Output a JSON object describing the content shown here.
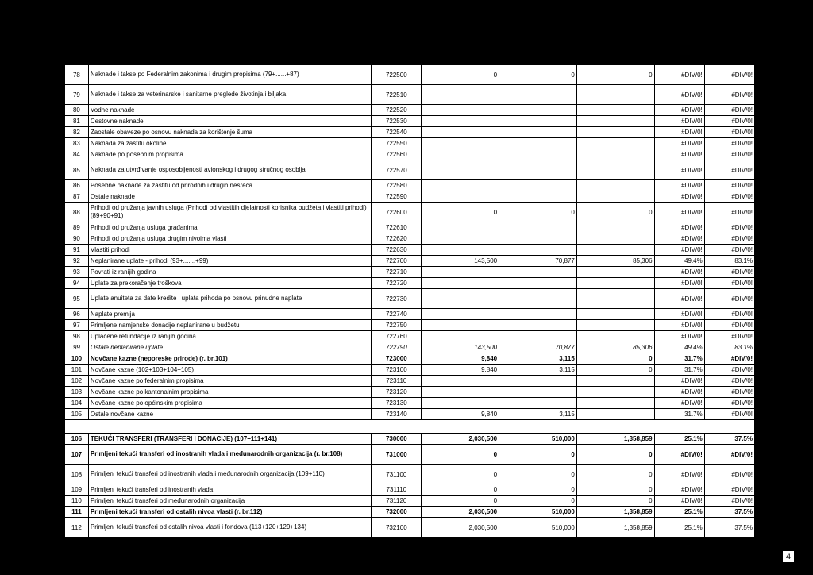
{
  "page_number": "4",
  "columns": [
    "rn",
    "desc",
    "code",
    "v1",
    "v2",
    "v3",
    "p1",
    "p2"
  ],
  "rows": [
    {
      "rn": "78",
      "desc": "Naknade i takse po Federalnim zakonima i drugim propisima (79+......+87)",
      "code": "722500",
      "v1": "0",
      "v2": "0",
      "v3": "0",
      "p1": "#DIV/0!",
      "p2": "#DIV/0!",
      "tall": true
    },
    {
      "rn": "79",
      "desc": "Naknade i takse za veterinarske i sanitarne preglede životinja i biljaka",
      "code": "722510",
      "v1": "",
      "v2": "",
      "v3": "",
      "p1": "#DIV/0!",
      "p2": "#DIV/0!",
      "tall": true
    },
    {
      "rn": "80",
      "desc": "Vodne naknade",
      "code": "722520",
      "v1": "",
      "v2": "",
      "v3": "",
      "p1": "#DIV/0!",
      "p2": "#DIV/0!"
    },
    {
      "rn": "81",
      "desc": "Cestovne naknade",
      "code": "722530",
      "v1": "",
      "v2": "",
      "v3": "",
      "p1": "#DIV/0!",
      "p2": "#DIV/0!"
    },
    {
      "rn": "82",
      "desc": "Zaostale obaveze po osnovu naknada za korištenje šuma",
      "code": "722540",
      "v1": "",
      "v2": "",
      "v3": "",
      "p1": "#DIV/0!",
      "p2": "#DIV/0!"
    },
    {
      "rn": "83",
      "desc": "Naknada za zaštitu okoline",
      "code": "722550",
      "v1": "",
      "v2": "",
      "v3": "",
      "p1": "#DIV/0!",
      "p2": "#DIV/0!"
    },
    {
      "rn": "84",
      "desc": "Naknade po posebnim propisima",
      "code": "722560",
      "v1": "",
      "v2": "",
      "v3": "",
      "p1": "#DIV/0!",
      "p2": "#DIV/0!"
    },
    {
      "rn": "85",
      "desc": "Naknada za utvrđivanje osposobljenosti avionskog i drugog stručnog osoblja",
      "code": "722570",
      "v1": "",
      "v2": "",
      "v3": "",
      "p1": "#DIV/0!",
      "p2": "#DIV/0!",
      "tall": true
    },
    {
      "rn": "86",
      "desc": "Posebne naknade za zaštitu od prirodnih i drugih nesreća",
      "code": "722580",
      "v1": "",
      "v2": "",
      "v3": "",
      "p1": "#DIV/0!",
      "p2": "#DIV/0!"
    },
    {
      "rn": "87",
      "desc": "Ostale naknade",
      "code": "722590",
      "v1": "",
      "v2": "",
      "v3": "",
      "p1": "#DIV/0!",
      "p2": "#DIV/0!"
    },
    {
      "rn": "88",
      "desc": "Prihodi od pružanja javnih usluga (Prihodi od vlastitih djelatnosti korisnika budžeta i vlastiti prihodi) (89+90+91)",
      "code": "722600",
      "v1": "0",
      "v2": "0",
      "v3": "0",
      "p1": "#DIV/0!",
      "p2": "#DIV/0!",
      "tall": true
    },
    {
      "rn": "89",
      "desc": "Prihodi od pružanja usluga građanima",
      "code": "722610",
      "v1": "",
      "v2": "",
      "v3": "",
      "p1": "#DIV/0!",
      "p2": "#DIV/0!"
    },
    {
      "rn": "90",
      "desc": "Prihodi od pružanja usluga drugim nivoima vlasti",
      "code": "722620",
      "v1": "",
      "v2": "",
      "v3": "",
      "p1": "#DIV/0!",
      "p2": "#DIV/0!"
    },
    {
      "rn": "91",
      "desc": "Vlastiti prihodi",
      "code": "722630",
      "v1": "",
      "v2": "",
      "v3": "",
      "p1": "#DIV/0!",
      "p2": "#DIV/0!"
    },
    {
      "rn": "92",
      "desc": "Neplanirane uplate - prihodi (93+.......+99)",
      "code": "722700",
      "v1": "143,500",
      "v2": "70,877",
      "v3": "85,306",
      "p1": "49.4%",
      "p2": "83.1%"
    },
    {
      "rn": "93",
      "desc": "Povrati iz ranijih godina",
      "code": "722710",
      "v1": "",
      "v2": "",
      "v3": "",
      "p1": "#DIV/0!",
      "p2": "#DIV/0!"
    },
    {
      "rn": "94",
      "desc": "Uplate za prekoračenje troškova",
      "code": "722720",
      "v1": "",
      "v2": "",
      "v3": "",
      "p1": "#DIV/0!",
      "p2": "#DIV/0!"
    },
    {
      "rn": "95",
      "desc": "Uplate anuiteta za date kredite i uplata prihoda po osnovu prinudne naplate",
      "code": "722730",
      "v1": "",
      "v2": "",
      "v3": "",
      "p1": "#DIV/0!",
      "p2": "#DIV/0!",
      "tall": true
    },
    {
      "rn": "96",
      "desc": "Naplate premija",
      "code": "722740",
      "v1": "",
      "v2": "",
      "v3": "",
      "p1": "#DIV/0!",
      "p2": "#DIV/0!"
    },
    {
      "rn": "97",
      "desc": "Primljene namjenske donacije neplanirane u budžetu",
      "code": "722750",
      "v1": "",
      "v2": "",
      "v3": "",
      "p1": "#DIV/0!",
      "p2": "#DIV/0!"
    },
    {
      "rn": "98",
      "desc": "Uplaćene refundacije iz ranijih godina",
      "code": "722760",
      "v1": "",
      "v2": "",
      "v3": "",
      "p1": "#DIV/0!",
      "p2": "#DIV/0!"
    },
    {
      "rn": "99",
      "desc": "Ostale neplanirane uplate",
      "code": "722790",
      "v1": "143,500",
      "v2": "70,877",
      "v3": "85,306",
      "p1": "49.4%",
      "p2": "83.1%",
      "italic": true
    },
    {
      "rn": "100",
      "desc": "Novčane kazne (neporeske prirode) (r. br.101)",
      "code": "723000",
      "v1": "9,840",
      "v2": "3,115",
      "v3": "0",
      "p1": "31.7%",
      "p2": "#DIV/0!",
      "bold": true
    },
    {
      "rn": "101",
      "desc": "Novčane kazne (102+103+104+105)",
      "code": "723100",
      "v1": "9,840",
      "v2": "3,115",
      "v3": "0",
      "p1": "31.7%",
      "p2": "#DIV/0!"
    },
    {
      "rn": "102",
      "desc": "Novčane kazne po federalnim propisima",
      "code": "723110",
      "v1": "",
      "v2": "",
      "v3": "",
      "p1": "#DIV/0!",
      "p2": "#DIV/0!"
    },
    {
      "rn": "103",
      "desc": "Novčane kazne po kantonalnim propisima",
      "code": "723120",
      "v1": "",
      "v2": "",
      "v3": "",
      "p1": "#DIV/0!",
      "p2": "#DIV/0!"
    },
    {
      "rn": "104",
      "desc": "Novčane kazne po općinskim propisima",
      "code": "723130",
      "v1": "",
      "v2": "",
      "v3": "",
      "p1": "#DIV/0!",
      "p2": "#DIV/0!"
    },
    {
      "rn": "105",
      "desc": "Ostale novčane kazne",
      "code": "723140",
      "v1": "9,840",
      "v2": "3,115",
      "v3": "",
      "p1": "31.7%",
      "p2": "#DIV/0!"
    },
    {
      "spacer": true
    },
    {
      "rn": "106",
      "desc": "TEKUĆI TRANSFERI (TRANSFERI I DONACIJE) (107+111+141)",
      "code": "730000",
      "v1": "2,030,500",
      "v2": "510,000",
      "v3": "1,358,859",
      "p1": "25.1%",
      "p2": "37.5%",
      "bold": true
    },
    {
      "rn": "107",
      "desc": "Primljeni tekući transferi od inostranih vlada i međunarodnih organizacija (r. br.108)",
      "code": "731000",
      "v1": "0",
      "v2": "0",
      "v3": "0",
      "p1": "#DIV/0!",
      "p2": "#DIV/0!",
      "tall": true,
      "bold": true
    },
    {
      "rn": "108",
      "desc": "Primljeni tekući transferi od inostranih vlada i međunarodnih organizacija (109+110)",
      "code": "731100",
      "v1": "0",
      "v2": "0",
      "v3": "0",
      "p1": "#DIV/0!",
      "p2": "#DIV/0!",
      "tall": true
    },
    {
      "rn": "109",
      "desc": "Primljeni tekući transferi od inostranih vlada",
      "code": "731110",
      "v1": "0",
      "v2": "0",
      "v3": "0",
      "p1": "#DIV/0!",
      "p2": "#DIV/0!"
    },
    {
      "rn": "110",
      "desc": "Primljeni tekući transferi od međunarodnih organizacija",
      "code": "731120",
      "v1": "0",
      "v2": "0",
      "v3": "0",
      "p1": "#DIV/0!",
      "p2": "#DIV/0!"
    },
    {
      "rn": "111",
      "desc": "Primljeni tekući transferi od ostalih nivoa vlasti (r. br.112)",
      "code": "732000",
      "v1": "2,030,500",
      "v2": "510,000",
      "v3": "1,358,859",
      "p1": "25.1%",
      "p2": "37.5%",
      "bold": true
    },
    {
      "rn": "112",
      "desc": "Primljeni tekući transferi od ostalih nivoa vlasti i fondova (113+120+129+134)",
      "code": "732100",
      "v1": "2,030,500",
      "v2": "510,000",
      "v3": "1,358,859",
      "p1": "25.1%",
      "p2": "37.5%",
      "tall": true
    }
  ]
}
